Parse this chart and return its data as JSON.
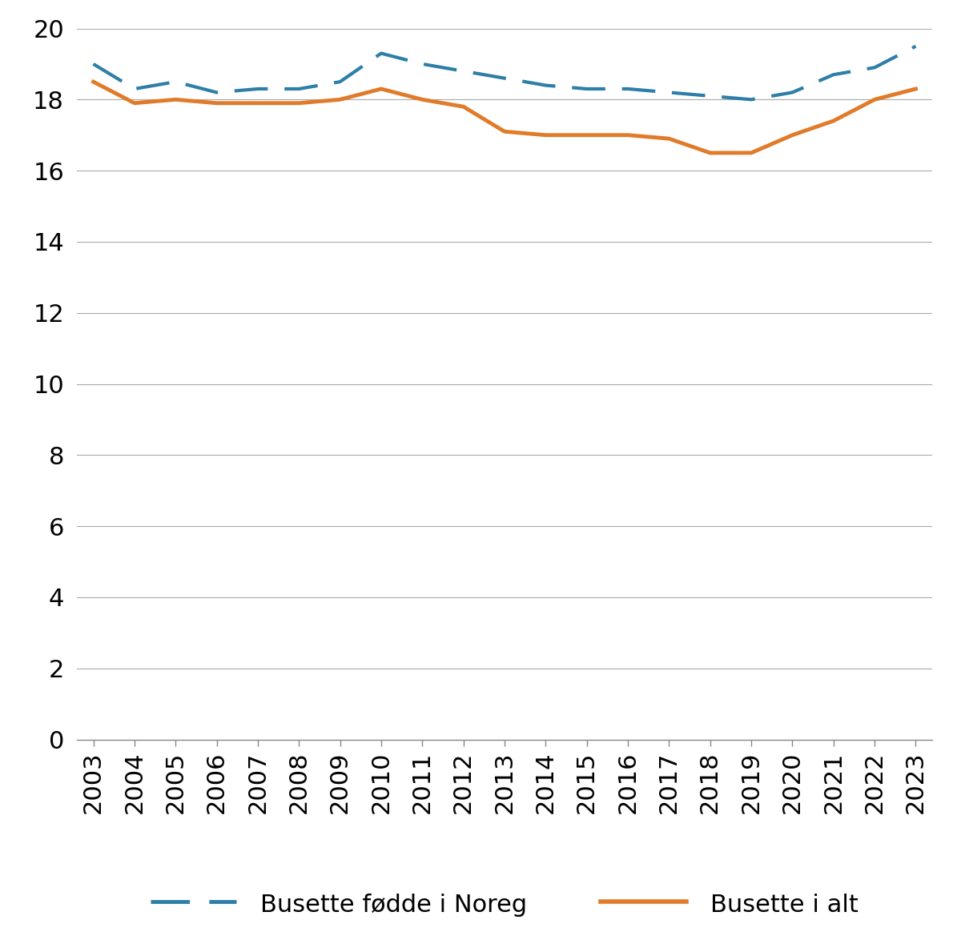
{
  "years": [
    2003,
    2004,
    2005,
    2006,
    2007,
    2008,
    2009,
    2010,
    2011,
    2012,
    2013,
    2014,
    2015,
    2016,
    2017,
    2018,
    2019,
    2020,
    2021,
    2022,
    2023
  ],
  "born_in_norway": [
    19.0,
    18.3,
    18.5,
    18.2,
    18.3,
    18.3,
    18.5,
    19.3,
    19.0,
    18.8,
    18.6,
    18.4,
    18.3,
    18.3,
    18.2,
    18.1,
    18.0,
    18.2,
    18.7,
    18.9,
    19.5
  ],
  "all_residents": [
    18.5,
    17.9,
    18.0,
    17.9,
    17.9,
    17.9,
    18.0,
    18.3,
    18.0,
    17.8,
    17.1,
    17.0,
    17.0,
    17.0,
    16.9,
    16.5,
    16.5,
    17.0,
    17.4,
    18.0,
    18.3
  ],
  "born_color": "#2e7fa8",
  "all_color": "#e07b2a",
  "ylim": [
    0,
    20
  ],
  "yticks": [
    0,
    2,
    4,
    6,
    8,
    10,
    12,
    14,
    16,
    18,
    20
  ],
  "legend_born": "Busette fødde i Noreg",
  "legend_all": "Busette i alt",
  "grid_color": "#aaaaaa",
  "born_linewidth": 3.0,
  "all_linewidth": 3.5,
  "font_size_ticks": 22,
  "font_size_legend": 22,
  "dash_pattern": [
    10,
    5
  ]
}
